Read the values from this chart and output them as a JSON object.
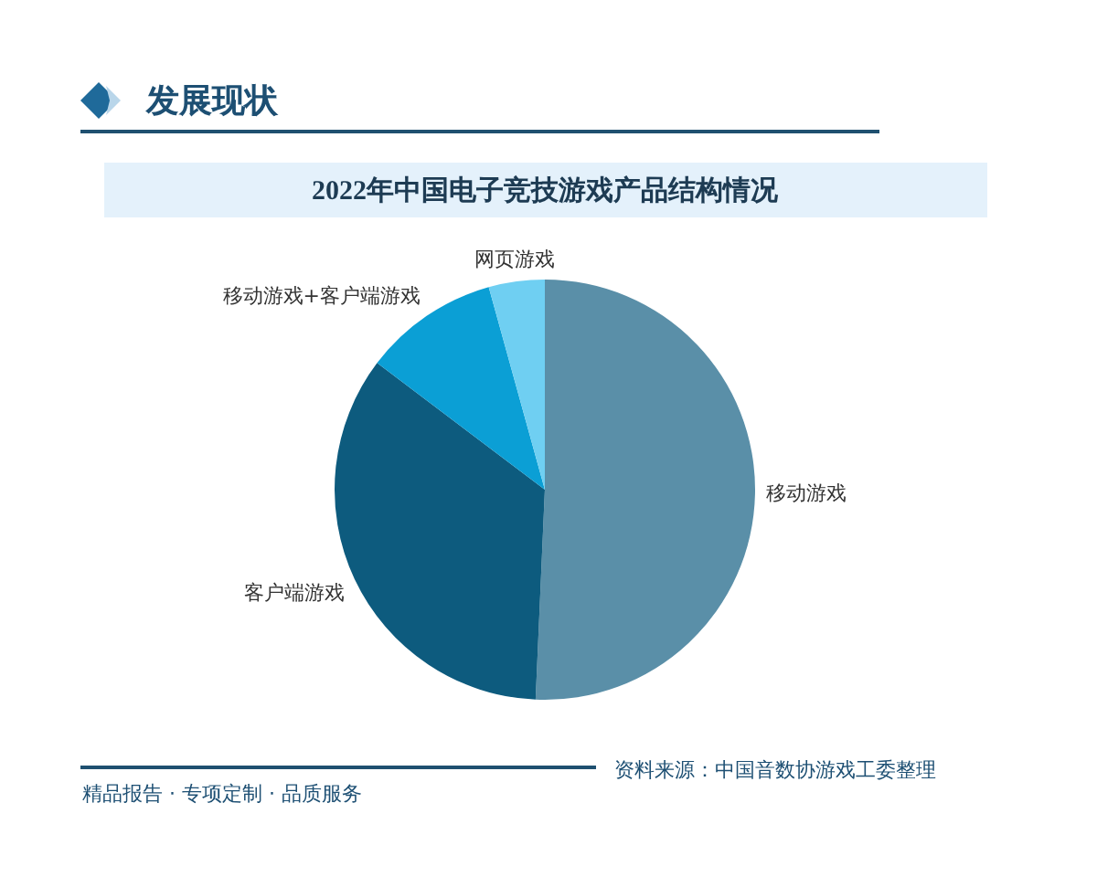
{
  "chart_data": {
    "type": "pie",
    "subtitle": "发展现状",
    "title": "2022年中国电子竞技游戏产品结构情况",
    "categories": [
      "移动游戏",
      "客户端游戏",
      "移动游戏+客户端游戏",
      "网页游戏"
    ],
    "values": [
      50.7,
      34.6,
      10.4,
      4.3
    ],
    "colors": [
      "#5a8fa8",
      "#0d5b7e",
      "#0b9fd5",
      "#6fcff2"
    ],
    "legend": false,
    "annotations": [
      "资料来源：中国音数协游戏工委整理",
      "精品报告 · 专项定制 · 品质服务"
    ]
  }
}
